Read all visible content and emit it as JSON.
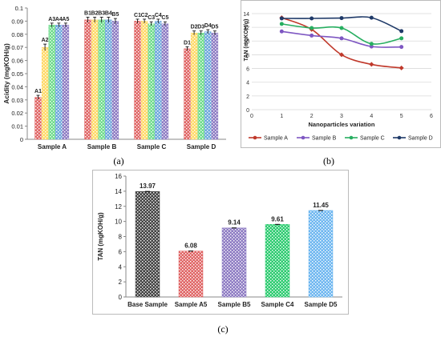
{
  "chart_data": [
    {
      "panel_label": "(a)",
      "type": "bar",
      "ylabel": "Acidity (mgKOH/g)",
      "ylim": [
        0,
        0.1
      ],
      "yticks": [
        "0",
        "0.01",
        "0.02",
        "0.03",
        "0.04",
        "0.05",
        "0.06",
        "0.07",
        "0.08",
        "0.09",
        "0.1"
      ],
      "grid": false,
      "colors": [
        "#e06666",
        "#ffd966",
        "#6fdc8c",
        "#6fa8dc",
        "#8e7cc3"
      ],
      "groups": [
        {
          "name": "Sample A",
          "labels": [
            "A1",
            "A2",
            "A3",
            "A4",
            "A5"
          ],
          "values": [
            0.032,
            0.07,
            0.087,
            0.087,
            0.087
          ],
          "errors": [
            0.0015,
            0.0025,
            0.0015,
            0.0015,
            0.0015
          ]
        },
        {
          "name": "Sample B",
          "labels": [
            "B1",
            "B2",
            "B3",
            "B4",
            "B5"
          ],
          "values": [
            0.091,
            0.091,
            0.091,
            0.091,
            0.09
          ],
          "errors": [
            0.002,
            0.002,
            0.002,
            0.002,
            0.002
          ]
        },
        {
          "name": "Sample C",
          "labels": [
            "C1",
            "C2",
            "C3",
            "C4",
            "C5"
          ],
          "values": [
            0.09,
            0.09,
            0.088,
            0.09,
            0.088
          ],
          "errors": [
            0.0015,
            0.0015,
            0.0015,
            0.0015,
            0.0015
          ]
        },
        {
          "name": "Sample D",
          "labels": [
            "D1",
            "D2",
            "D3",
            "D4",
            "D5"
          ],
          "values": [
            0.069,
            0.081,
            0.081,
            0.082,
            0.081
          ],
          "errors": [
            0.0015,
            0.0015,
            0.0015,
            0.0015,
            0.0015
          ]
        }
      ]
    },
    {
      "panel_label": "(b)",
      "type": "line",
      "xlabel": "Nanoparticles variation",
      "ylabel": "TAN (mgKOH/g)",
      "xlim": [
        0,
        6
      ],
      "ylim": [
        0,
        14
      ],
      "xticks": [
        "0",
        "1",
        "2",
        "3",
        "4",
        "5",
        "6"
      ],
      "yticks": [
        "0",
        "2",
        "4",
        "6",
        "8",
        "10",
        "12",
        "14"
      ],
      "grid": true,
      "legend_position": "bottom",
      "x": [
        1,
        2,
        3,
        4,
        5
      ],
      "series": [
        {
          "name": "Sample A",
          "values": [
            13.4,
            11.7,
            8.0,
            6.6,
            6.08
          ],
          "color": "#c0392b",
          "marker": "diamond"
        },
        {
          "name": "Sample B",
          "values": [
            11.4,
            10.8,
            10.4,
            9.2,
            9.14
          ],
          "color": "#7e57c2",
          "marker": "circle"
        },
        {
          "name": "Sample C",
          "values": [
            12.5,
            11.9,
            11.9,
            9.6,
            10.4
          ],
          "color": "#27ae60",
          "marker": "circle"
        },
        {
          "name": "Sample D",
          "values": [
            13.3,
            13.3,
            13.35,
            13.4,
            11.45
          ],
          "color": "#1f3a68",
          "marker": "circle"
        }
      ]
    },
    {
      "panel_label": "(c)",
      "type": "bar",
      "ylabel": "TAN (mgKOH/g)",
      "ylim": [
        0,
        16
      ],
      "yticks": [
        "0",
        "2",
        "4",
        "6",
        "8",
        "10",
        "12",
        "14",
        "16"
      ],
      "grid": false,
      "categories": [
        "Base Sample",
        "Sample A5",
        "Sample B5",
        "Sample C4",
        "Sample D5"
      ],
      "values": [
        13.97,
        6.08,
        9.14,
        9.61,
        11.45
      ],
      "value_labels": [
        "13.97",
        "6.08",
        "9.14",
        "9.61",
        "11.45"
      ],
      "colors": [
        "#444444",
        "#e06666",
        "#8e7cc3",
        "#2ecc71",
        "#6fb7f0"
      ]
    }
  ]
}
